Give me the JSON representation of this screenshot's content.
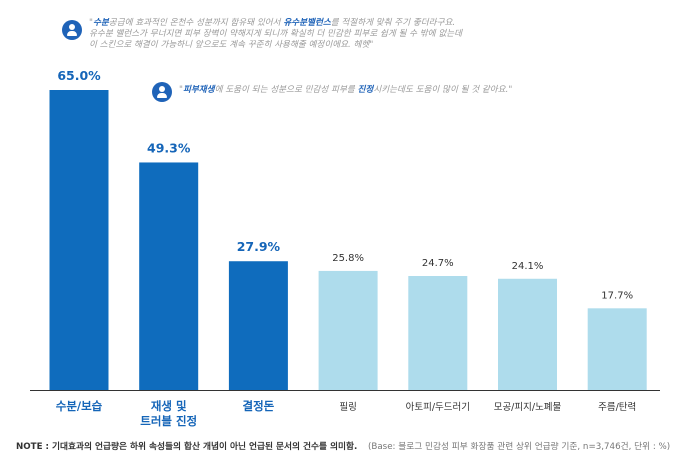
{
  "chart_data": {
    "type": "bar",
    "categories": [
      "수분/보습",
      "재생 및\n트러블 진정",
      "결정돈",
      "필링",
      "아토피/두드러기",
      "모공/피지/노폐물",
      "주름/탄력"
    ],
    "values": [
      65.0,
      49.3,
      27.9,
      25.8,
      24.7,
      24.1,
      17.7
    ],
    "value_labels": [
      "65.0%",
      "49.3%",
      "27.9%",
      "25.8%",
      "24.7%",
      "24.1%",
      "17.7%"
    ],
    "highlighted_count": 3,
    "ylim": [
      0,
      70
    ],
    "grid": false,
    "colors": {
      "highlight": "#0f6cbd",
      "normal": "#aedcec",
      "highlight_label": "#1565b8",
      "normal_label": "#333333",
      "axis": "#333333"
    }
  },
  "quotes": [
    {
      "parts": [
        {
          "t": "\"",
          "b": false
        },
        {
          "t": "수분",
          "b": true
        },
        {
          "t": "공급에 효과적인 온천수 성분까지 함유돼 있어서 ",
          "b": false
        },
        {
          "t": "유수분밸런스",
          "b": true
        },
        {
          "t": "를 적절하게 맞춰 주기 좋더라구요.",
          "b": false
        }
      ],
      "line2": "유수분 밸런스가 무너지면 피부 장벽이 약해지게 되니까 확실히 더 민감한 피부로 쉽게 될 수 밖에 없는데",
      "line3": "이 스킨으로 해결이 가능하니 앞으로도 계속 꾸준히 사용해줄 예정이에요. 헤헷\""
    },
    {
      "parts": [
        {
          "t": "\"",
          "b": false
        },
        {
          "t": "피부재생",
          "b": true
        },
        {
          "t": "에 도움이 되는 성분으로 민감성 피부를 ",
          "b": false
        },
        {
          "t": "진정",
          "b": true
        },
        {
          "t": "시키는데도 도움이 많이 될 것 같아요.\"",
          "b": false
        }
      ]
    }
  ],
  "footer": {
    "note": "NOTE : 기대효과의 언급량은 하위 속성들의 합산 개념이 아닌 언급된 문서의 건수를 의미함.",
    "base": "(Base: 블로그 민감성 피부 화장품 관련 상위 언급량 기준, n=3,746건, 단위 : %)"
  }
}
